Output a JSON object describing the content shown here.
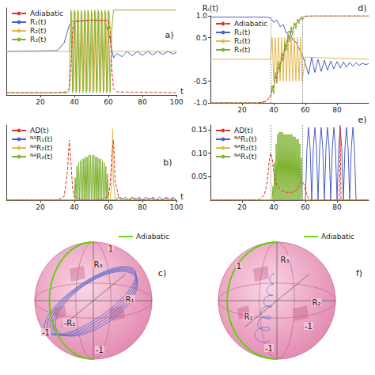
{
  "chart_data": [
    {
      "panel": "a)",
      "type": "line",
      "x_label": "t",
      "xlim": [
        0,
        100
      ],
      "xticks": [
        20,
        40,
        60,
        80,
        100
      ],
      "ylim": [
        -1,
        1
      ],
      "tick_labels": "x",
      "grid": false,
      "legend": "upper left",
      "series": [
        {
          "name": "Adiabatic",
          "color": "#e0322c",
          "line_style": "dashed",
          "x": [
            0,
            30,
            35,
            37,
            38,
            39,
            40,
            45,
            50,
            55,
            58,
            60,
            61,
            62,
            63,
            65,
            100
          ],
          "values": [
            -0.95,
            -0.95,
            -0.93,
            -0.85,
            -0.4,
            0.5,
            0.68,
            0.7,
            0.72,
            0.72,
            0.72,
            0.7,
            0.5,
            -0.4,
            -0.85,
            -0.93,
            -0.95
          ]
        },
        {
          "name": "R₁(t)",
          "color": "#4d5fc4",
          "line_style": "solid",
          "x": [
            0,
            30,
            34,
            37,
            39,
            42,
            50,
            58,
            61,
            63,
            65,
            68,
            71,
            74,
            77,
            80,
            83,
            86,
            89,
            92,
            95,
            98,
            100
          ],
          "values": [
            0,
            0.02,
            0.2,
            0.6,
            0.7,
            0.7,
            0.72,
            0.7,
            0.3,
            -0.15,
            -0.05,
            -0.12,
            0,
            -0.1,
            0,
            -0.09,
            0,
            -0.08,
            0,
            -0.07,
            0,
            -0.06,
            -0.02
          ]
        },
        {
          "name": "R₂(t)",
          "color": "#e8b84c",
          "line_style": "solid",
          "x": [
            0,
            37,
            38.5,
            39.5,
            40.5,
            41.5,
            42.5,
            43.5,
            44.5,
            45.5,
            46.5,
            47.5,
            48.5,
            49.5,
            50.5,
            51.5,
            52.5,
            53.5,
            54.5,
            55.5,
            56.5,
            57.5,
            58.5,
            59.5,
            60.5,
            62,
            100
          ],
          "values": [
            0,
            0,
            0.9,
            -0.9,
            0.9,
            -0.9,
            0.9,
            -0.9,
            0.9,
            -0.9,
            0.9,
            -0.9,
            0.9,
            -0.9,
            0.9,
            -0.9,
            0.9,
            -0.9,
            0.9,
            -0.9,
            0.9,
            -0.9,
            0.9,
            -0.9,
            0.9,
            0,
            0
          ]
        },
        {
          "name": "R₃(t)",
          "color": "#7fb232",
          "line_style": "solid",
          "x": [
            0,
            36,
            37,
            38,
            39,
            40,
            41,
            42,
            43,
            44,
            45,
            46,
            47,
            48,
            49,
            50,
            51,
            52,
            53,
            54,
            55,
            56,
            57,
            58,
            59,
            60,
            61,
            62,
            63,
            100
          ],
          "values": [
            -0.95,
            -0.95,
            -0.9,
            0.95,
            -0.95,
            0.95,
            -0.95,
            0.95,
            -0.95,
            0.95,
            -0.95,
            0.95,
            -0.95,
            0.95,
            -0.95,
            0.95,
            -0.95,
            0.95,
            -0.95,
            0.95,
            -0.95,
            0.95,
            -0.95,
            0.95,
            -0.95,
            0.95,
            -0.95,
            0.5,
            0.95,
            0.95
          ]
        }
      ]
    },
    {
      "panel": "b)",
      "type": "line",
      "x_label": "t",
      "xlim": [
        0,
        100
      ],
      "xticks": [
        20,
        40,
        60,
        80,
        100
      ],
      "ylim": [
        0,
        0.2
      ],
      "tick_labels": "x",
      "grid": false,
      "legend": "upper left",
      "series": [
        {
          "name": "AD(t)",
          "color": "#e0322c",
          "line_style": "dashed",
          "x": [
            0,
            30,
            34,
            36,
            37,
            38,
            39,
            40,
            45,
            55,
            60,
            61,
            62,
            63,
            64,
            66,
            70,
            75,
            80,
            85,
            90,
            95,
            100
          ],
          "values": [
            0,
            0,
            0.01,
            0.08,
            0.16,
            0.1,
            0.03,
            0.01,
            0,
            0,
            0.01,
            0.04,
            0.12,
            0.16,
            0.05,
            0.01,
            0,
            0.005,
            0,
            0.005,
            0,
            0.005,
            0
          ]
        },
        {
          "name": "ᴺᴬR₁(t)",
          "color": "#4d5fc4",
          "line_style": "solid",
          "x": [
            0,
            64,
            66,
            68,
            70,
            72,
            74,
            76,
            78,
            80,
            82,
            84,
            86,
            88,
            90,
            92,
            94,
            96,
            98,
            100
          ],
          "values": [
            0,
            0,
            0.008,
            0,
            0.008,
            0,
            0.008,
            0,
            0.008,
            0,
            0.008,
            0,
            0.008,
            0,
            0.008,
            0,
            0.008,
            0,
            0.008,
            0
          ]
        },
        {
          "name": "ᴺᴬR₂(t)",
          "color": "#e8b84c",
          "line_style": "solid",
          "x": [
            0,
            61,
            62,
            62.5,
            63,
            64,
            100
          ],
          "values": [
            0,
            0,
            0.05,
            0.19,
            0.05,
            0,
            0
          ]
        },
        {
          "name": "ᴺᴬR₃(t)",
          "color": "#7fb232",
          "line_style": "solid",
          "x": [
            0,
            40,
            40.5,
            41,
            41.5,
            42,
            42.5,
            43,
            43.5,
            44,
            44.5,
            45,
            45.5,
            46,
            46.5,
            47,
            47.5,
            48,
            48.5,
            49,
            49.5,
            50,
            50.5,
            51,
            51.5,
            52,
            52.5,
            53,
            53.5,
            54,
            54.5,
            55,
            55.5,
            56,
            56.5,
            57,
            57.5,
            58,
            58.5,
            59,
            59.5,
            60,
            100
          ],
          "values": [
            0,
            0,
            0.06,
            0,
            0.09,
            0,
            0.1,
            0,
            0.105,
            0,
            0.11,
            0,
            0.11,
            0,
            0.115,
            0,
            0.115,
            0,
            0.12,
            0,
            0.12,
            0,
            0.12,
            0,
            0.12,
            0,
            0.115,
            0,
            0.115,
            0,
            0.11,
            0,
            0.11,
            0,
            0.105,
            0,
            0.1,
            0,
            0.09,
            0,
            0.07,
            0,
            0
          ]
        }
      ]
    },
    {
      "panel": "d)",
      "type": "line",
      "y_label": "Rᵢ(t)",
      "xlim": [
        0,
        100
      ],
      "xticks": [
        20,
        40,
        60,
        80
      ],
      "ylim": [
        -1,
        1
      ],
      "yticks": [
        {
          "value": -1,
          "label": "-1.0"
        },
        {
          "value": -0.5,
          "label": "-0.5"
        },
        {
          "value": 0.5,
          "label": "0.5"
        },
        {
          "value": 1,
          "label": "1.0"
        }
      ],
      "grid": false,
      "legend": "upper left",
      "vlines": [
        38,
        58
      ],
      "series": [
        {
          "name": "Adiabatic",
          "color": "#e0322c",
          "line_style": "dashed",
          "x": [
            0,
            30,
            35,
            38,
            40,
            42,
            45,
            48,
            50,
            52,
            55,
            58,
            60,
            65,
            100
          ],
          "values": [
            -1,
            -1,
            -0.97,
            -0.85,
            -0.6,
            -0.35,
            0,
            0.35,
            0.55,
            0.7,
            0.88,
            0.97,
            0.99,
            1,
            1
          ]
        },
        {
          "name": "R₁(t)",
          "color": "#4d5fc4",
          "line_style": "solid",
          "x": [
            0,
            35,
            38,
            40,
            42,
            44,
            46,
            48,
            50,
            52,
            54,
            56,
            58,
            60,
            62,
            64,
            66,
            68,
            70,
            72,
            74,
            76,
            78,
            80,
            82,
            84,
            86,
            88,
            90,
            92,
            94,
            96,
            98,
            100
          ],
          "values": [
            0.97,
            0.97,
            0.95,
            0.85,
            0.9,
            0.75,
            0.8,
            0.6,
            0.65,
            0.45,
            0.4,
            0.25,
            0.1,
            -0.1,
            -0.35,
            0.05,
            -0.3,
            0,
            -0.28,
            -0.02,
            -0.25,
            -0.04,
            -0.22,
            -0.05,
            -0.2,
            -0.06,
            -0.18,
            -0.07,
            -0.16,
            -0.08,
            -0.14,
            -0.09,
            -0.12,
            -0.1
          ]
        },
        {
          "name": "R₂(t)",
          "color": "#e8b84c",
          "line_style": "solid",
          "x": [
            0,
            38,
            39,
            40,
            41,
            42,
            43,
            44,
            45,
            46,
            47,
            48,
            49,
            50,
            51,
            52,
            53,
            54,
            55,
            56,
            57,
            58,
            60,
            100
          ],
          "values": [
            0,
            0,
            0.5,
            -0.5,
            0.5,
            -0.5,
            0.5,
            -0.5,
            0.5,
            -0.5,
            0.5,
            -0.5,
            0.5,
            -0.5,
            0.5,
            -0.5,
            0.5,
            -0.5,
            0.5,
            -0.5,
            0.5,
            -0.5,
            0.05,
            0
          ]
        },
        {
          "name": "R₃(t)",
          "color": "#7fb232",
          "line_style": "solid",
          "x": [
            0,
            30,
            35,
            38,
            39,
            40,
            41,
            42,
            43,
            44,
            45,
            46,
            47,
            48,
            49,
            50,
            51,
            52,
            53,
            54,
            55,
            56,
            57,
            58,
            60,
            100
          ],
          "values": [
            -1,
            -1,
            -0.97,
            -0.85,
            -0.6,
            -0.8,
            -0.3,
            -0.55,
            -0.05,
            -0.3,
            0.15,
            -0.05,
            0.4,
            0.2,
            0.6,
            0.4,
            0.75,
            0.55,
            0.85,
            0.7,
            0.92,
            0.82,
            0.97,
            0.9,
            1,
            1
          ]
        }
      ]
    },
    {
      "panel": "e)",
      "type": "line",
      "xlim": [
        0,
        100
      ],
      "xticks": [
        20,
        40,
        60,
        80
      ],
      "ylim": [
        0,
        0.16
      ],
      "yticks": [
        0.05,
        {
          "value": 0.1,
          "label": "0.10"
        },
        0.15
      ],
      "grid": false,
      "legend": "upper left",
      "vlines": [
        38,
        58
      ],
      "series": [
        {
          "name": "AD(t)",
          "color": "#e0322c",
          "line_style": "dashed",
          "x": [
            0,
            30,
            34,
            36,
            37,
            38,
            39,
            40,
            42,
            45,
            50,
            54,
            57,
            58,
            59,
            61,
            63,
            70,
            81.5,
            82,
            82.5,
            100
          ],
          "values": [
            0,
            0,
            0.01,
            0.04,
            0.08,
            0.1,
            0.09,
            0.06,
            0.03,
            0.02,
            0.015,
            0.02,
            0.035,
            0.04,
            0.035,
            0.01,
            0,
            0,
            0,
            0.16,
            0,
            0
          ]
        },
        {
          "name": "ᴺᴬR₁(t)",
          "color": "#4d5fc4",
          "line_style": "solid",
          "x": [
            0,
            58,
            60,
            61,
            62,
            63,
            64,
            65,
            66,
            67,
            68,
            69,
            70,
            71,
            72,
            73,
            74,
            75,
            76,
            77,
            78,
            79,
            80,
            81,
            82,
            83,
            84,
            85,
            86,
            87,
            88,
            89,
            90,
            91,
            92,
            100
          ],
          "values": [
            0,
            0,
            0,
            0.11,
            0.155,
            0.11,
            0,
            0.11,
            0.155,
            0.11,
            0,
            0.11,
            0.155,
            0.11,
            0,
            0.11,
            0.155,
            0.11,
            0,
            0.11,
            0.155,
            0.11,
            0,
            0.11,
            0.155,
            0.11,
            0,
            0.11,
            0.155,
            0.11,
            0,
            0.11,
            0.155,
            0.11,
            0,
            0
          ]
        },
        {
          "name": "ᴺᴬR₂(t)",
          "color": "#e8b84c",
          "line_style": "solid",
          "x": [
            0,
            100
          ],
          "values": [
            0,
            0
          ]
        },
        {
          "name": "ᴺᴬR₃(t)",
          "color": "#7fb232",
          "line_style": "solid",
          "x": [
            0,
            39,
            39.5,
            40,
            40.5,
            41,
            41.5,
            42,
            42.5,
            43,
            43.5,
            44,
            44.5,
            45,
            45.5,
            46,
            46.5,
            47,
            47.5,
            48,
            48.5,
            49,
            49.5,
            50,
            50.5,
            51,
            51.5,
            52,
            52.5,
            53,
            53.5,
            54,
            54.5,
            55,
            55.5,
            56,
            56.5,
            57,
            57.5,
            58,
            100
          ],
          "values": [
            0,
            0,
            0.03,
            0,
            0.08,
            0,
            0.12,
            0,
            0.14,
            0,
            0.145,
            0,
            0.145,
            0,
            0.145,
            0,
            0.14,
            0,
            0.14,
            0,
            0.14,
            0,
            0.14,
            0,
            0.14,
            0,
            0.14,
            0,
            0.135,
            0,
            0.135,
            0,
            0.13,
            0,
            0.13,
            0,
            0.12,
            0,
            0.09,
            0,
            0
          ]
        }
      ]
    }
  ],
  "diagrams": [
    {
      "panel": "c)",
      "type": "bloch_sphere",
      "legend": "Adiabatic",
      "color": "#55d400",
      "labels": [
        "1",
        "R₃",
        "R₁",
        "-R₂",
        "-1",
        "-1"
      ]
    },
    {
      "panel": "f)",
      "type": "bloch_sphere",
      "legend": "Adiabatic",
      "color": "#55d400",
      "labels": [
        "R₃",
        "R₁",
        "R₂",
        "-1",
        "-1",
        "1"
      ]
    }
  ]
}
